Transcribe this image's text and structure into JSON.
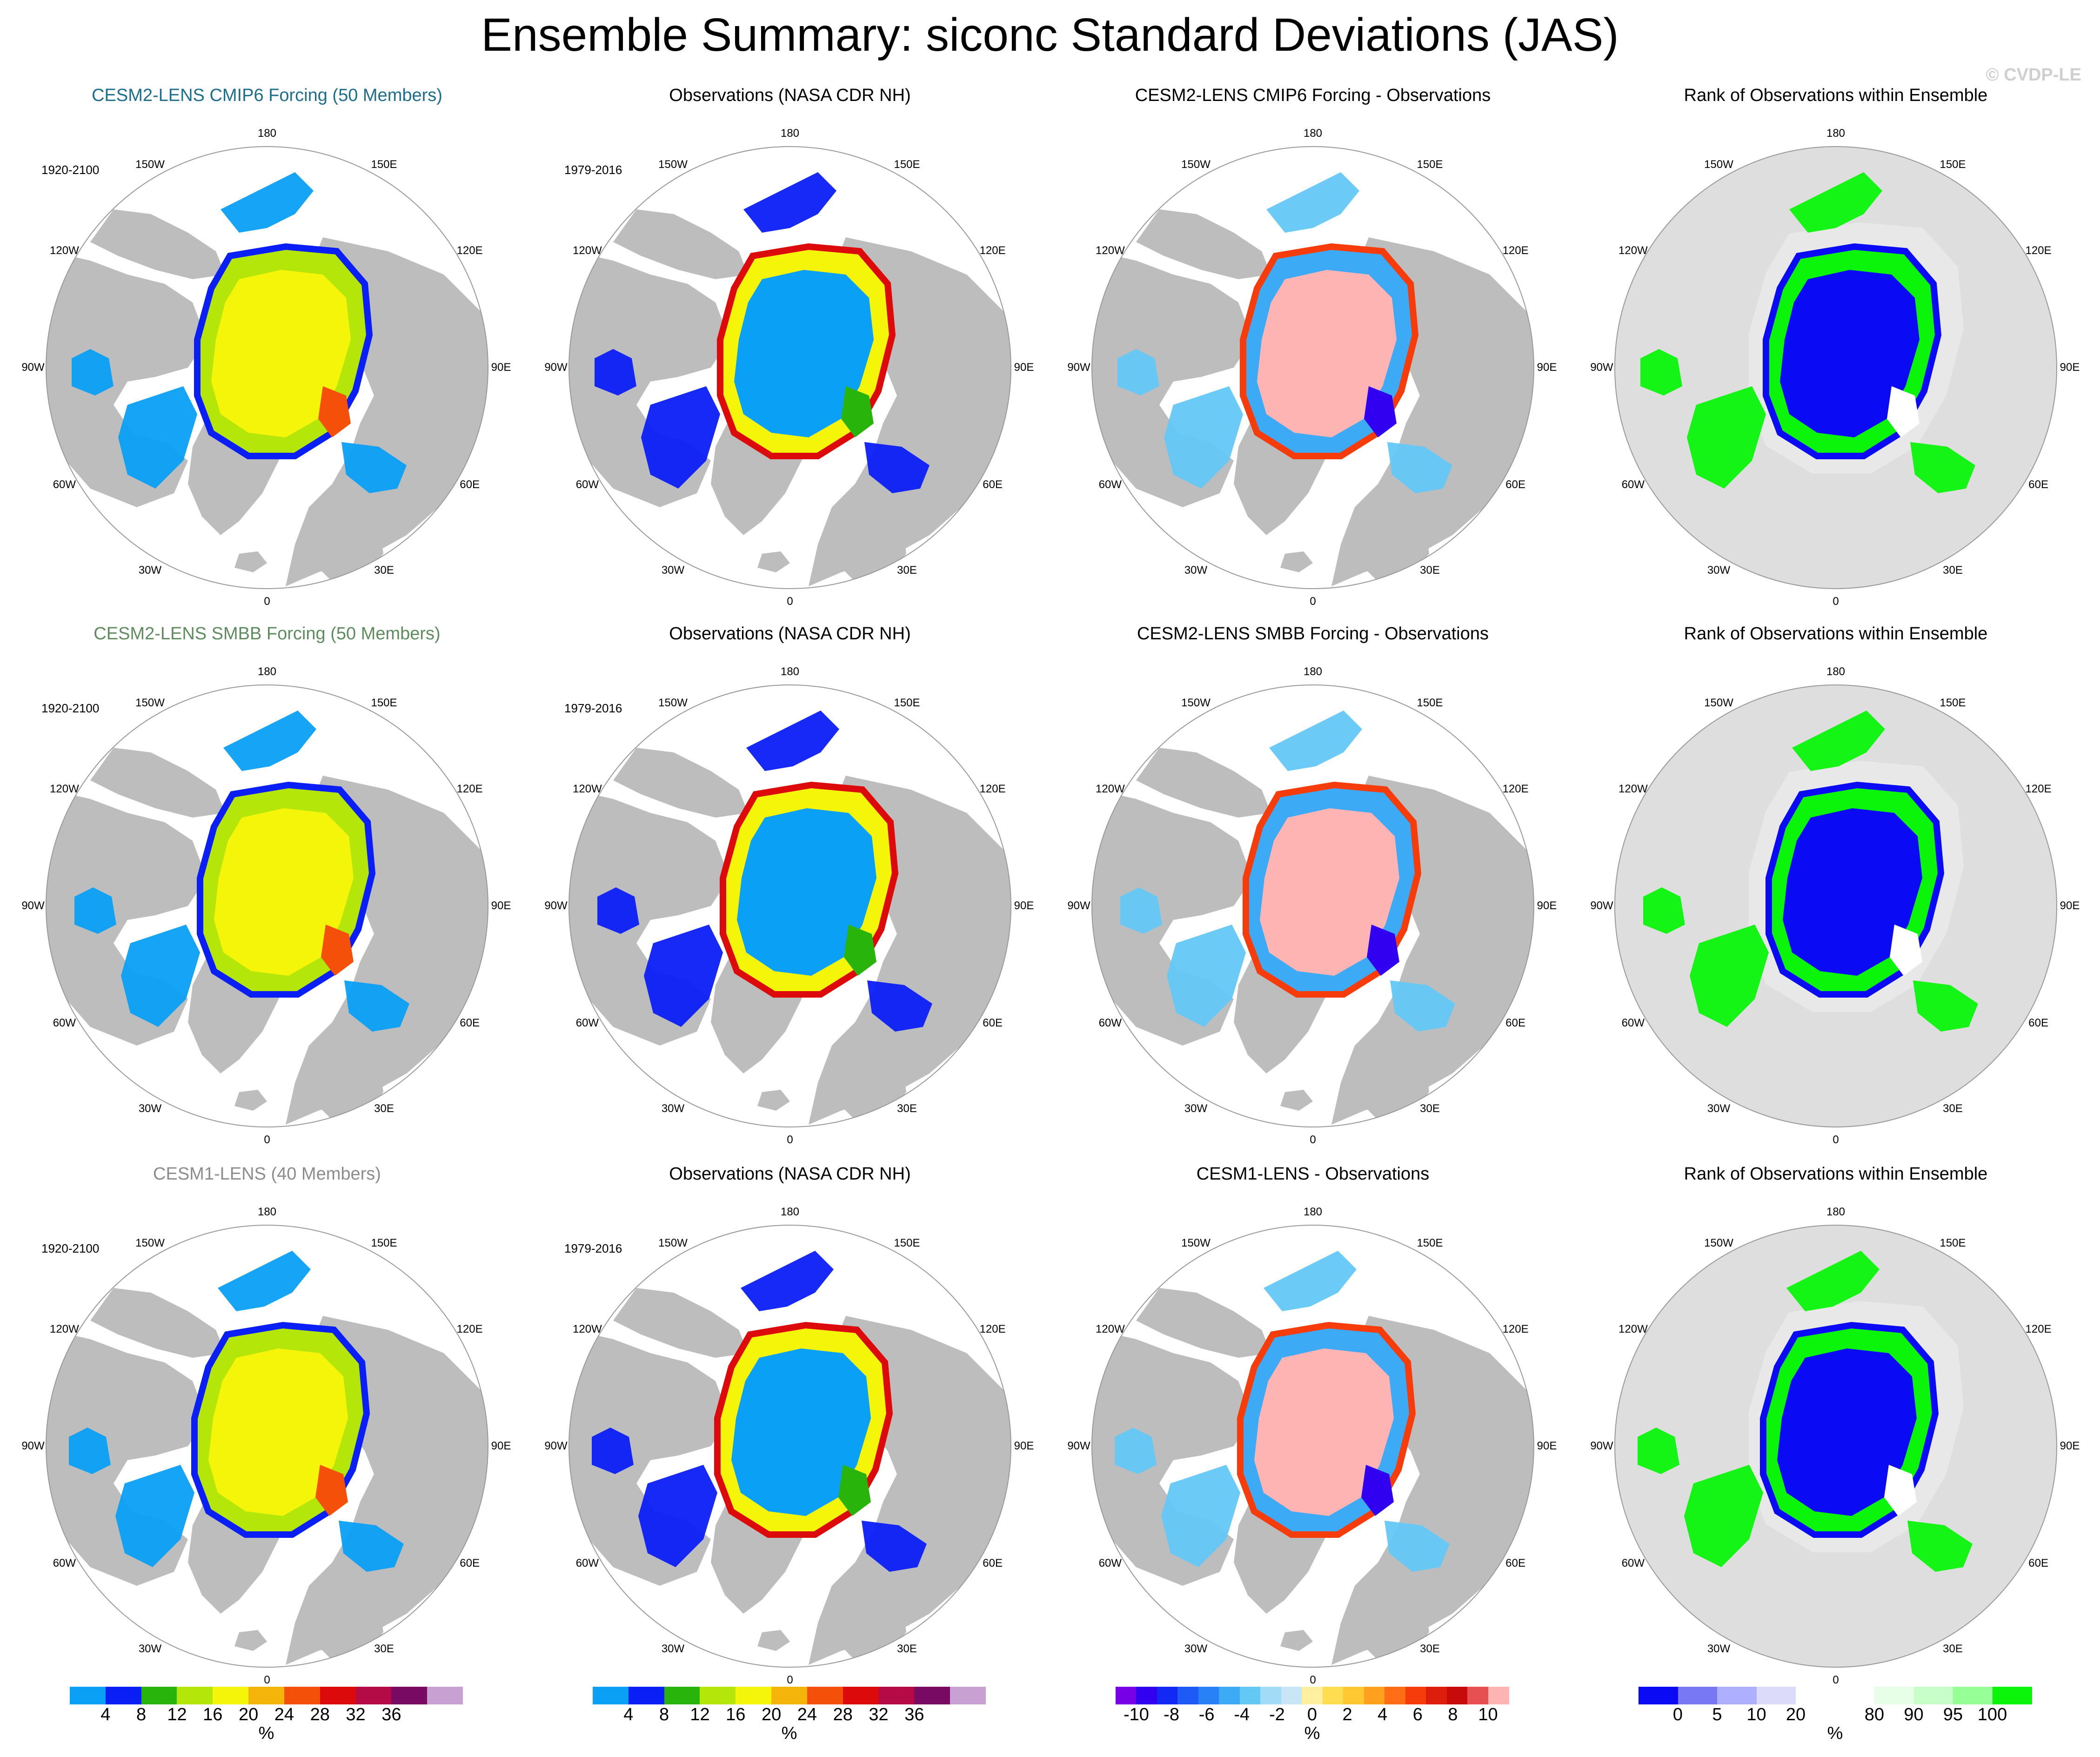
{
  "title": "Ensemble Summary: siconc Standard Deviations (JAS)",
  "watermark": "© CVDP-LE",
  "colors": {
    "land": "#bdbdbd",
    "rank_land": "#dedede",
    "ocean": "#ffffff"
  },
  "rows": [
    {
      "model_title": "CESM2-LENS CMIP6 Forcing (50 Members)",
      "model_title_color": "#1c6e8c",
      "obs_title": "Observations (NASA CDR NH)",
      "diff_title": "CESM2-LENS CMIP6 Forcing - Observations",
      "rank_title": "Rank of Observations within Ensemble",
      "model_period": "1920-2100",
      "obs_period": "1979-2016"
    },
    {
      "model_title": "CESM2-LENS SMBB Forcing (50 Members)",
      "model_title_color": "#5e8c5e",
      "obs_title": "Observations (NASA CDR NH)",
      "diff_title": "CESM2-LENS SMBB Forcing - Observations",
      "rank_title": "Rank of Observations within Ensemble",
      "model_period": "1920-2100",
      "obs_period": "1979-2016"
    },
    {
      "model_title": "CESM1-LENS (40 Members)",
      "model_title_color": "#8c8c8c",
      "obs_title": "Observations (NASA CDR NH)",
      "diff_title": "CESM1-LENS - Observations",
      "rank_title": "Rank of Observations within Ensemble",
      "model_period": "1920-2100",
      "obs_period": "1979-2016"
    }
  ],
  "map_labels": [
    "180",
    "150E",
    "120E",
    "90E",
    "60E",
    "30E",
    "0",
    "30W",
    "60W",
    "90W",
    "120W",
    "150W"
  ],
  "colorbars": [
    {
      "name": "stddev",
      "colors": [
        "#0aa0f6",
        "#0a1ef6",
        "#28b40a",
        "#b4e60a",
        "#f5f50a",
        "#f5b40a",
        "#f5500a",
        "#dc0a0a",
        "#b40a46",
        "#780a64",
        "#c8a0d2"
      ],
      "labels": [
        "4",
        "8",
        "12",
        "16",
        "20",
        "24",
        "28",
        "32",
        "36"
      ],
      "units": "%"
    },
    {
      "name": "stddev-obs",
      "colors": [
        "#0aa0f6",
        "#0a1ef6",
        "#28b40a",
        "#b4e60a",
        "#f5f50a",
        "#f5b40a",
        "#f5500a",
        "#dc0a0a",
        "#b40a46",
        "#780a64",
        "#c8a0d2"
      ],
      "labels": [
        "4",
        "8",
        "12",
        "16",
        "20",
        "24",
        "28",
        "32",
        "36"
      ],
      "units": "%"
    },
    {
      "name": "difference",
      "colors": [
        "#7800e6",
        "#3200f0",
        "#1428f5",
        "#1e5af5",
        "#2882f5",
        "#3caaf5",
        "#64c8f5",
        "#a0dcf5",
        "#c8e6f5",
        "#fff0a0",
        "#ffdc50",
        "#ffc832",
        "#ffa01e",
        "#ff6e14",
        "#f53c0a",
        "#dc1e0a",
        "#c80a0a",
        "#e65050",
        "#ffb4b4"
      ],
      "labels": [
        "-10",
        "-8",
        "-6",
        "-4",
        "-2",
        "0",
        "2",
        "4",
        "6",
        "8",
        "10"
      ],
      "units": "%"
    },
    {
      "name": "rank",
      "colors": [
        "#0a0af5",
        "#7878f5",
        "#afafff",
        "#dcdcfa",
        "#ffffff",
        "#ffffff",
        "#e6ffe6",
        "#c8ffc8",
        "#96ff96",
        "#0af50a"
      ],
      "labels": [
        "0",
        "5",
        "10",
        "20",
        "80",
        "90",
        "95",
        "100"
      ],
      "units": "%"
    }
  ]
}
